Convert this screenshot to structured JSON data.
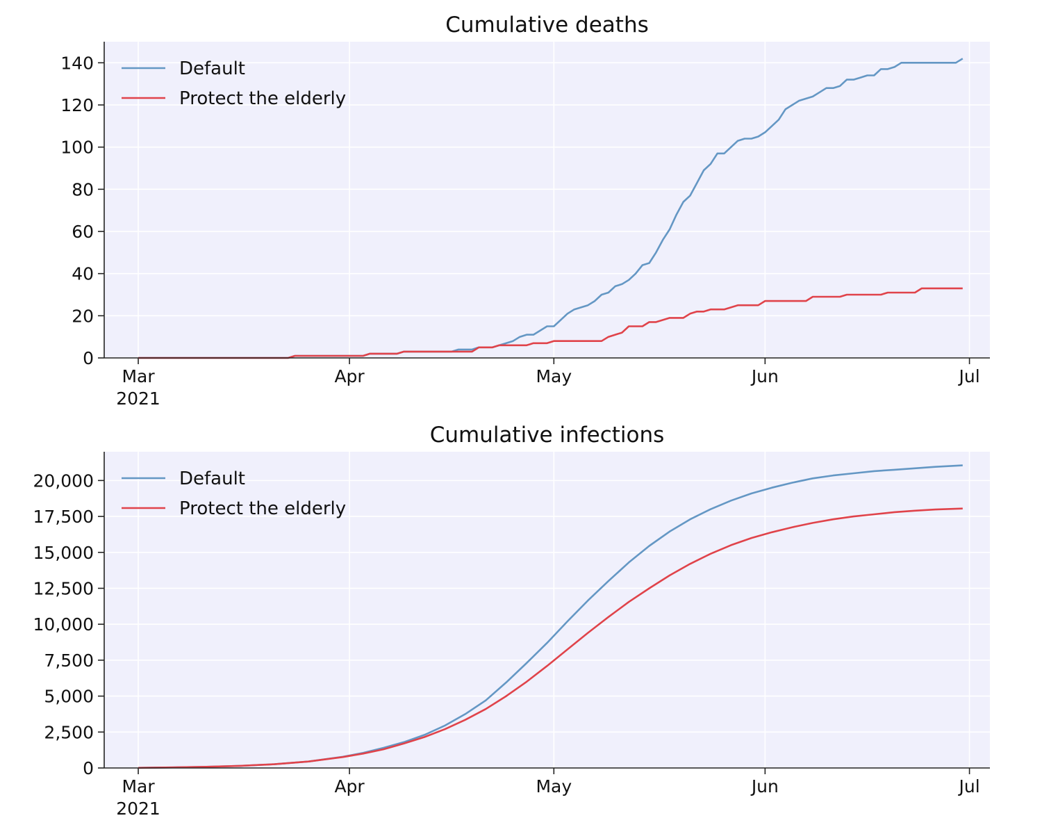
{
  "colors": {
    "plot_background": "#f0f0fc",
    "default": "#6497c4",
    "protect": "#e0434a"
  },
  "chart_data": [
    {
      "type": "line",
      "title": "Cumulative deaths",
      "xlabel": "",
      "ylabel": "",
      "x_axis": "date",
      "xlim": [
        "2021-02-24",
        "2021-07-04"
      ],
      "ylim": [
        0,
        150
      ],
      "yticks": [
        0,
        20,
        40,
        60,
        80,
        100,
        120,
        140
      ],
      "ytick_labels": [
        "0",
        "20",
        "40",
        "60",
        "80",
        "100",
        "120",
        "140"
      ],
      "xticks": [
        "2021-03-01",
        "2021-04-01",
        "2021-05-01",
        "2021-06-01",
        "2021-07-01"
      ],
      "xtick_labels": [
        "Mar",
        "Apr",
        "May",
        "Jun",
        "Jul"
      ],
      "xtick_year": "2021",
      "grid": true,
      "legend_position": "top-left",
      "series": [
        {
          "name": "Default",
          "color": "#6497c4",
          "points": [
            [
              "2021-03-01",
              0
            ],
            [
              "2021-03-23",
              0
            ],
            [
              "2021-03-24",
              1
            ],
            [
              "2021-04-03",
              1
            ],
            [
              "2021-04-04",
              2
            ],
            [
              "2021-04-08",
              2
            ],
            [
              "2021-04-09",
              3
            ],
            [
              "2021-04-16",
              3
            ],
            [
              "2021-04-17",
              4
            ],
            [
              "2021-04-19",
              4
            ],
            [
              "2021-04-20",
              5
            ],
            [
              "2021-04-22",
              5
            ],
            [
              "2021-04-23",
              6
            ],
            [
              "2021-04-24",
              7
            ],
            [
              "2021-04-25",
              8
            ],
            [
              "2021-04-26",
              10
            ],
            [
              "2021-04-27",
              11
            ],
            [
              "2021-04-28",
              11
            ],
            [
              "2021-04-30",
              15
            ],
            [
              "2021-05-01",
              15
            ],
            [
              "2021-05-02",
              18
            ],
            [
              "2021-05-03",
              21
            ],
            [
              "2021-05-04",
              23
            ],
            [
              "2021-05-05",
              24
            ],
            [
              "2021-05-06",
              25
            ],
            [
              "2021-05-07",
              27
            ],
            [
              "2021-05-08",
              30
            ],
            [
              "2021-05-09",
              31
            ],
            [
              "2021-05-10",
              34
            ],
            [
              "2021-05-11",
              35
            ],
            [
              "2021-05-12",
              37
            ],
            [
              "2021-05-13",
              40
            ],
            [
              "2021-05-14",
              44
            ],
            [
              "2021-05-15",
              45
            ],
            [
              "2021-05-16",
              50
            ],
            [
              "2021-05-17",
              56
            ],
            [
              "2021-05-18",
              61
            ],
            [
              "2021-05-19",
              68
            ],
            [
              "2021-05-20",
              74
            ],
            [
              "2021-05-21",
              77
            ],
            [
              "2021-05-22",
              83
            ],
            [
              "2021-05-23",
              89
            ],
            [
              "2021-05-24",
              92
            ],
            [
              "2021-05-25",
              97
            ],
            [
              "2021-05-26",
              97
            ],
            [
              "2021-05-27",
              100
            ],
            [
              "2021-05-28",
              103
            ],
            [
              "2021-05-29",
              104
            ],
            [
              "2021-05-30",
              104
            ],
            [
              "2021-05-31",
              105
            ],
            [
              "2021-06-01",
              107
            ],
            [
              "2021-06-02",
              110
            ],
            [
              "2021-06-03",
              113
            ],
            [
              "2021-06-04",
              118
            ],
            [
              "2021-06-05",
              120
            ],
            [
              "2021-06-06",
              122
            ],
            [
              "2021-06-07",
              123
            ],
            [
              "2021-06-08",
              124
            ],
            [
              "2021-06-09",
              126
            ],
            [
              "2021-06-10",
              128
            ],
            [
              "2021-06-11",
              128
            ],
            [
              "2021-06-12",
              129
            ],
            [
              "2021-06-13",
              132
            ],
            [
              "2021-06-14",
              132
            ],
            [
              "2021-06-15",
              133
            ],
            [
              "2021-06-16",
              134
            ],
            [
              "2021-06-17",
              134
            ],
            [
              "2021-06-18",
              137
            ],
            [
              "2021-06-19",
              137
            ],
            [
              "2021-06-20",
              138
            ],
            [
              "2021-06-21",
              140
            ],
            [
              "2021-06-29",
              140
            ],
            [
              "2021-06-30",
              142
            ]
          ]
        },
        {
          "name": "Protect the elderly",
          "color": "#e0434a",
          "points": [
            [
              "2021-03-01",
              0
            ],
            [
              "2021-03-23",
              0
            ],
            [
              "2021-03-24",
              1
            ],
            [
              "2021-04-03",
              1
            ],
            [
              "2021-04-04",
              2
            ],
            [
              "2021-04-08",
              2
            ],
            [
              "2021-04-09",
              3
            ],
            [
              "2021-04-19",
              3
            ],
            [
              "2021-04-20",
              5
            ],
            [
              "2021-04-22",
              5
            ],
            [
              "2021-04-23",
              6
            ],
            [
              "2021-04-27",
              6
            ],
            [
              "2021-04-28",
              7
            ],
            [
              "2021-04-30",
              7
            ],
            [
              "2021-05-01",
              8
            ],
            [
              "2021-05-08",
              8
            ],
            [
              "2021-05-09",
              10
            ],
            [
              "2021-05-10",
              11
            ],
            [
              "2021-05-11",
              12
            ],
            [
              "2021-05-12",
              15
            ],
            [
              "2021-05-14",
              15
            ],
            [
              "2021-05-15",
              17
            ],
            [
              "2021-05-16",
              17
            ],
            [
              "2021-05-17",
              18
            ],
            [
              "2021-05-18",
              19
            ],
            [
              "2021-05-20",
              19
            ],
            [
              "2021-05-21",
              21
            ],
            [
              "2021-05-22",
              22
            ],
            [
              "2021-05-23",
              22
            ],
            [
              "2021-05-24",
              23
            ],
            [
              "2021-05-26",
              23
            ],
            [
              "2021-05-27",
              24
            ],
            [
              "2021-05-28",
              25
            ],
            [
              "2021-05-31",
              25
            ],
            [
              "2021-06-01",
              27
            ],
            [
              "2021-06-07",
              27
            ],
            [
              "2021-06-08",
              29
            ],
            [
              "2021-06-12",
              29
            ],
            [
              "2021-06-13",
              30
            ],
            [
              "2021-06-18",
              30
            ],
            [
              "2021-06-19",
              31
            ],
            [
              "2021-06-23",
              31
            ],
            [
              "2021-06-24",
              33
            ],
            [
              "2021-06-30",
              33
            ]
          ]
        }
      ]
    },
    {
      "type": "line",
      "title": "Cumulative infections",
      "xlabel": "",
      "ylabel": "",
      "x_axis": "date",
      "xlim": [
        "2021-02-24",
        "2021-07-04"
      ],
      "ylim": [
        0,
        22000
      ],
      "yticks": [
        0,
        2500,
        5000,
        7500,
        10000,
        12500,
        15000,
        17500,
        20000
      ],
      "ytick_labels": [
        "0",
        "2,500",
        "5,000",
        "7,500",
        "10,000",
        "12,500",
        "15,000",
        "17,500",
        "20,000"
      ],
      "xticks": [
        "2021-03-01",
        "2021-04-01",
        "2021-05-01",
        "2021-06-01",
        "2021-07-01"
      ],
      "xtick_labels": [
        "Mar",
        "Apr",
        "May",
        "Jun",
        "Jul"
      ],
      "xtick_year": "2021",
      "grid": true,
      "legend_position": "top-left",
      "series": [
        {
          "name": "Default",
          "color": "#6497c4",
          "points": [
            [
              "2021-03-01",
              10
            ],
            [
              "2021-03-06",
              40
            ],
            [
              "2021-03-11",
              80
            ],
            [
              "2021-03-16",
              150
            ],
            [
              "2021-03-21",
              260
            ],
            [
              "2021-03-26",
              450
            ],
            [
              "2021-03-31",
              780
            ],
            [
              "2021-04-03",
              1050
            ],
            [
              "2021-04-06",
              1400
            ],
            [
              "2021-04-09",
              1800
            ],
            [
              "2021-04-12",
              2300
            ],
            [
              "2021-04-15",
              2950
            ],
            [
              "2021-04-18",
              3750
            ],
            [
              "2021-04-21",
              4700
            ],
            [
              "2021-04-24",
              5950
            ],
            [
              "2021-04-27",
              7300
            ],
            [
              "2021-04-30",
              8700
            ],
            [
              "2021-05-03",
              10200
            ],
            [
              "2021-05-06",
              11650
            ],
            [
              "2021-05-09",
              13000
            ],
            [
              "2021-05-12",
              14300
            ],
            [
              "2021-05-15",
              15450
            ],
            [
              "2021-05-18",
              16450
            ],
            [
              "2021-05-21",
              17300
            ],
            [
              "2021-05-24",
              18000
            ],
            [
              "2021-05-27",
              18600
            ],
            [
              "2021-05-30",
              19100
            ],
            [
              "2021-06-02",
              19500
            ],
            [
              "2021-06-05",
              19850
            ],
            [
              "2021-06-08",
              20150
            ],
            [
              "2021-06-11",
              20350
            ],
            [
              "2021-06-14",
              20500
            ],
            [
              "2021-06-17",
              20650
            ],
            [
              "2021-06-20",
              20750
            ],
            [
              "2021-06-23",
              20850
            ],
            [
              "2021-06-26",
              20950
            ],
            [
              "2021-06-30",
              21050
            ]
          ]
        },
        {
          "name": "Protect the elderly",
          "color": "#e0434a",
          "points": [
            [
              "2021-03-01",
              10
            ],
            [
              "2021-03-06",
              40
            ],
            [
              "2021-03-11",
              80
            ],
            [
              "2021-03-16",
              150
            ],
            [
              "2021-03-21",
              260
            ],
            [
              "2021-03-26",
              450
            ],
            [
              "2021-03-31",
              760
            ],
            [
              "2021-04-03",
              1000
            ],
            [
              "2021-04-06",
              1300
            ],
            [
              "2021-04-09",
              1700
            ],
            [
              "2021-04-12",
              2150
            ],
            [
              "2021-04-15",
              2700
            ],
            [
              "2021-04-18",
              3350
            ],
            [
              "2021-04-21",
              4100
            ],
            [
              "2021-04-24",
              5000
            ],
            [
              "2021-04-27",
              6000
            ],
            [
              "2021-04-30",
              7100
            ],
            [
              "2021-05-03",
              8250
            ],
            [
              "2021-05-06",
              9400
            ],
            [
              "2021-05-09",
              10500
            ],
            [
              "2021-05-12",
              11550
            ],
            [
              "2021-05-15",
              12500
            ],
            [
              "2021-05-18",
              13400
            ],
            [
              "2021-05-21",
              14200
            ],
            [
              "2021-05-24",
              14900
            ],
            [
              "2021-05-27",
              15500
            ],
            [
              "2021-05-30",
              16000
            ],
            [
              "2021-06-02",
              16400
            ],
            [
              "2021-06-05",
              16750
            ],
            [
              "2021-06-08",
              17050
            ],
            [
              "2021-06-11",
              17300
            ],
            [
              "2021-06-14",
              17500
            ],
            [
              "2021-06-17",
              17650
            ],
            [
              "2021-06-20",
              17800
            ],
            [
              "2021-06-23",
              17900
            ],
            [
              "2021-06-26",
              17980
            ],
            [
              "2021-06-30",
              18050
            ]
          ]
        }
      ]
    }
  ]
}
